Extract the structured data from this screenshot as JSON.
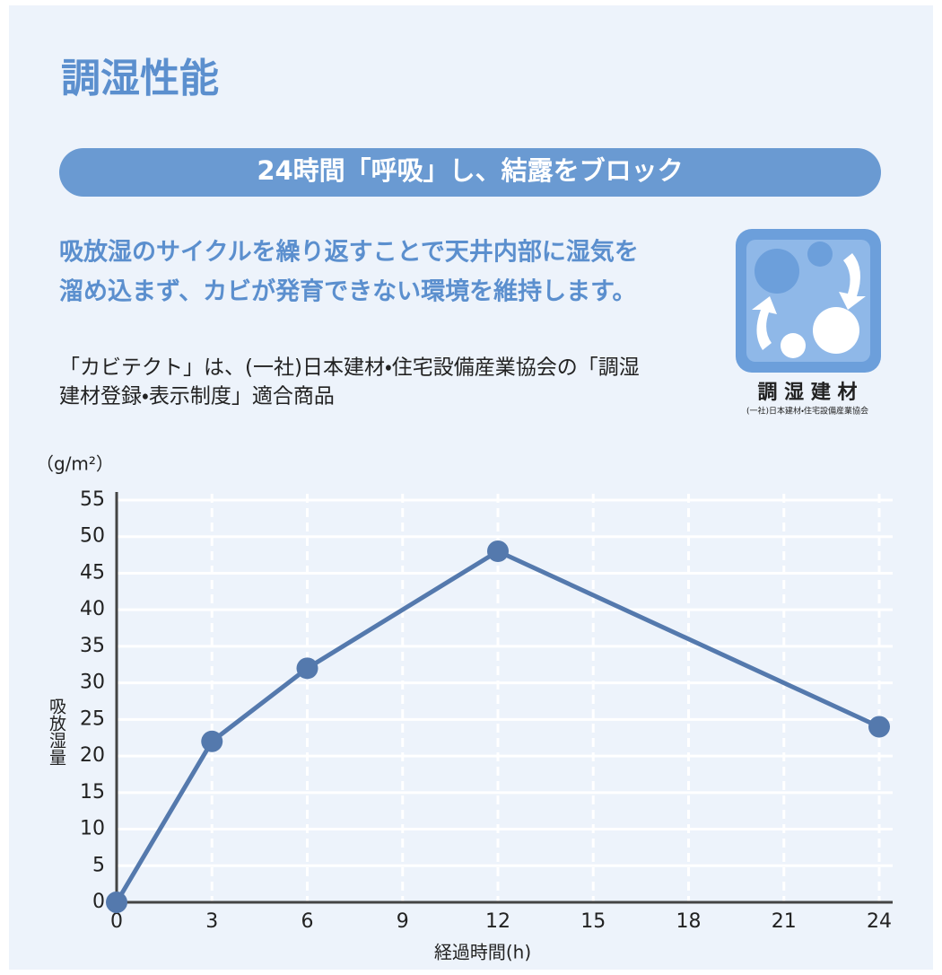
{
  "header": {
    "title": "調湿性能",
    "banner": "24時間「呼吸」し、結露をブロック"
  },
  "body": {
    "lead": [
      "吸放湿のサイクルを繰り返すことで天井内部に湿気を",
      "溜め込まず、カビが発育できない環境を維持します。"
    ],
    "note": [
      "「カビテクト」は、(一社)日本建材・住宅設備産業協会の「調湿",
      "建材登録・表示制度」適合商品"
    ]
  },
  "logo": {
    "label": "調 湿 建 材",
    "org": "(一社)日本建材・住宅設備産業協会"
  },
  "chart_data": {
    "type": "line",
    "unit_label": "（g/m²）",
    "ylabel": "吸放湿量",
    "xlabel": "経過時間(h)",
    "x": [
      0,
      3,
      6,
      12,
      24
    ],
    "values": [
      0,
      22,
      32,
      48,
      24
    ],
    "color": "#5479ad",
    "xlim": [
      0,
      24
    ],
    "xticks": [
      0,
      3,
      6,
      9,
      12,
      15,
      18,
      21,
      24
    ],
    "ylim": [
      0,
      55
    ],
    "yticks": [
      0,
      5,
      10,
      15,
      20,
      25,
      30,
      35,
      40,
      45,
      50,
      55
    ],
    "grid": true
  }
}
